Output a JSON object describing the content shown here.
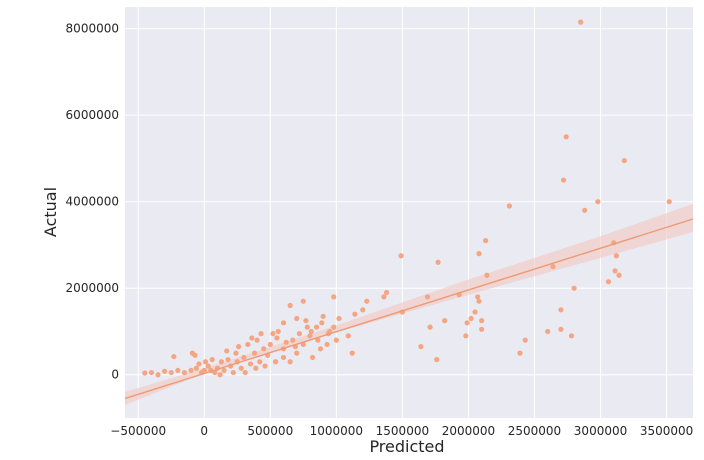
{
  "chart_data": {
    "type": "scatter",
    "xlabel": "Predicted",
    "ylabel": "Actual",
    "xlim": [
      -600000,
      3700000
    ],
    "ylim": [
      -1000000,
      8500000
    ],
    "x_ticks": [
      -500000,
      0,
      500000,
      1000000,
      1500000,
      2000000,
      2500000,
      3000000,
      3500000
    ],
    "y_ticks": [
      0,
      2000000,
      4000000,
      6000000,
      8000000
    ],
    "x_tick_labels": [
      "−500000",
      "0",
      "500000",
      "1000000",
      "1500000",
      "2000000",
      "2500000",
      "3000000",
      "3500000"
    ],
    "y_tick_labels": [
      "0",
      "2000000",
      "4000000",
      "6000000",
      "8000000"
    ],
    "grid": true,
    "regression_line": {
      "x": [
        -600000,
        3700000
      ],
      "y": [
        -550000,
        3600000
      ],
      "ci_band": [
        {
          "x": -600000,
          "low": -700000,
          "high": -400000
        },
        {
          "x": 0,
          "low": 30000,
          "high": 150000
        },
        {
          "x": 500000,
          "low": 510000,
          "high": 640000
        },
        {
          "x": 1000000,
          "low": 980000,
          "high": 1140000
        },
        {
          "x": 2000000,
          "low": 1850000,
          "high": 2200000
        },
        {
          "x": 3000000,
          "low": 2700000,
          "high": 3200000
        },
        {
          "x": 3700000,
          "low": 3300000,
          "high": 3950000
        }
      ]
    },
    "points": [
      [
        2850000,
        8150000
      ],
      [
        2740000,
        5500000
      ],
      [
        3180000,
        4950000
      ],
      [
        2720000,
        4500000
      ],
      [
        3520000,
        4000000
      ],
      [
        2980000,
        4000000
      ],
      [
        2880000,
        3800000
      ],
      [
        2310000,
        3900000
      ],
      [
        3100000,
        3050000
      ],
      [
        2130000,
        3100000
      ],
      [
        2080000,
        2800000
      ],
      [
        3120000,
        2750000
      ],
      [
        1490000,
        2750000
      ],
      [
        1770000,
        2600000
      ],
      [
        2640000,
        2500000
      ],
      [
        3110000,
        2400000
      ],
      [
        3140000,
        2300000
      ],
      [
        2140000,
        2300000
      ],
      [
        3060000,
        2150000
      ],
      [
        2800000,
        2000000
      ],
      [
        1930000,
        1850000
      ],
      [
        2070000,
        1800000
      ],
      [
        1690000,
        1800000
      ],
      [
        2080000,
        1700000
      ],
      [
        1380000,
        1900000
      ],
      [
        1360000,
        1800000
      ],
      [
        1230000,
        1700000
      ],
      [
        2700000,
        1500000
      ],
      [
        1500000,
        1450000
      ],
      [
        2050000,
        1450000
      ],
      [
        2020000,
        1300000
      ],
      [
        2100000,
        1250000
      ],
      [
        1820000,
        1250000
      ],
      [
        1990000,
        1200000
      ],
      [
        1710000,
        1100000
      ],
      [
        2100000,
        1050000
      ],
      [
        2700000,
        1050000
      ],
      [
        2600000,
        1000000
      ],
      [
        2780000,
        900000
      ],
      [
        1980000,
        900000
      ],
      [
        2430000,
        800000
      ],
      [
        1640000,
        650000
      ],
      [
        2390000,
        500000
      ],
      [
        1760000,
        350000
      ],
      [
        1200000,
        1500000
      ],
      [
        1140000,
        1400000
      ],
      [
        1020000,
        1300000
      ],
      [
        980000,
        1800000
      ],
      [
        1090000,
        900000
      ],
      [
        1120000,
        500000
      ],
      [
        900000,
        1350000
      ],
      [
        850000,
        1100000
      ],
      [
        950000,
        1000000
      ],
      [
        1000000,
        800000
      ],
      [
        750000,
        1700000
      ],
      [
        650000,
        1600000
      ],
      [
        700000,
        1300000
      ],
      [
        600000,
        1200000
      ],
      [
        560000,
        1000000
      ],
      [
        800000,
        900000
      ],
      [
        750000,
        700000
      ],
      [
        880000,
        600000
      ],
      [
        820000,
        400000
      ],
      [
        700000,
        500000
      ],
      [
        650000,
        300000
      ],
      [
        600000,
        600000
      ],
      [
        550000,
        850000
      ],
      [
        500000,
        700000
      ],
      [
        480000,
        450000
      ],
      [
        450000,
        600000
      ],
      [
        420000,
        300000
      ],
      [
        380000,
        500000
      ],
      [
        350000,
        250000
      ],
      [
        300000,
        400000
      ],
      [
        280000,
        150000
      ],
      [
        250000,
        300000
      ],
      [
        220000,
        50000
      ],
      [
        200000,
        200000
      ],
      [
        180000,
        350000
      ],
      [
        150000,
        100000
      ],
      [
        120000,
        0
      ],
      [
        100000,
        150000
      ],
      [
        80000,
        50000
      ],
      [
        50000,
        100000
      ],
      [
        30000,
        200000
      ],
      [
        0,
        100000
      ],
      [
        -20000,
        50000
      ],
      [
        -60000,
        150000
      ],
      [
        -100000,
        100000
      ],
      [
        -150000,
        50000
      ],
      [
        -200000,
        100000
      ],
      [
        -250000,
        50000
      ],
      [
        -300000,
        80000
      ],
      [
        -350000,
        0
      ],
      [
        -400000,
        50000
      ],
      [
        -450000,
        40000
      ],
      [
        -90000,
        500000
      ],
      [
        -70000,
        450000
      ],
      [
        -230000,
        420000
      ],
      [
        400000,
        800000
      ],
      [
        330000,
        700000
      ],
      [
        260000,
        650000
      ],
      [
        520000,
        950000
      ],
      [
        600000,
        400000
      ],
      [
        670000,
        800000
      ],
      [
        720000,
        950000
      ],
      [
        780000,
        1100000
      ],
      [
        860000,
        800000
      ],
      [
        930000,
        700000
      ],
      [
        980000,
        1100000
      ],
      [
        460000,
        200000
      ],
      [
        390000,
        150000
      ],
      [
        310000,
        50000
      ],
      [
        240000,
        500000
      ],
      [
        170000,
        550000
      ],
      [
        130000,
        300000
      ],
      [
        60000,
        350000
      ],
      [
        10000,
        300000
      ],
      [
        -40000,
        250000
      ],
      [
        540000,
        300000
      ],
      [
        620000,
        750000
      ],
      [
        690000,
        650000
      ],
      [
        810000,
        1000000
      ],
      [
        890000,
        1200000
      ],
      [
        940000,
        950000
      ],
      [
        770000,
        1250000
      ],
      [
        430000,
        950000
      ],
      [
        360000,
        850000
      ]
    ]
  },
  "colors": {
    "point": "#f4a582",
    "line": "#ee9a76",
    "band": "#f2c6c0",
    "plot_bg": "#eaeaf2",
    "grid": "#ffffff"
  }
}
